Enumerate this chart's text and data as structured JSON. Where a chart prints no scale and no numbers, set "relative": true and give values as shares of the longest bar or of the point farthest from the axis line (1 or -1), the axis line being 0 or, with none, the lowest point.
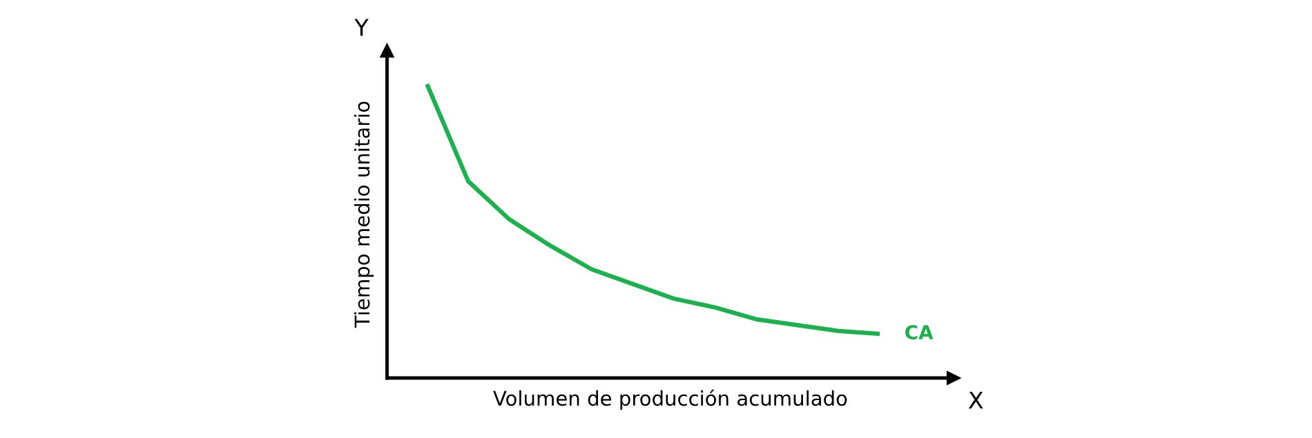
{
  "chart_data": {
    "type": "line",
    "relative": true,
    "xlabel": "Volumen de producción acumulado",
    "ylabel": "Tiempo medio unitario",
    "annotations": [
      "Y",
      "X"
    ],
    "categories": [
      null,
      null,
      null,
      null,
      null,
      null,
      null,
      null,
      null,
      null,
      null,
      null
    ],
    "series": [
      {
        "name": "CA",
        "color": "#1db04f",
        "values": [
          1.0,
          0.67,
          0.54,
          0.45,
          0.37,
          0.32,
          0.27,
          0.24,
          0.2,
          0.18,
          0.16,
          0.15
        ]
      }
    ],
    "tick_labels": false,
    "grid": false,
    "legend": false,
    "marker": "none",
    "line_style": "solid"
  }
}
